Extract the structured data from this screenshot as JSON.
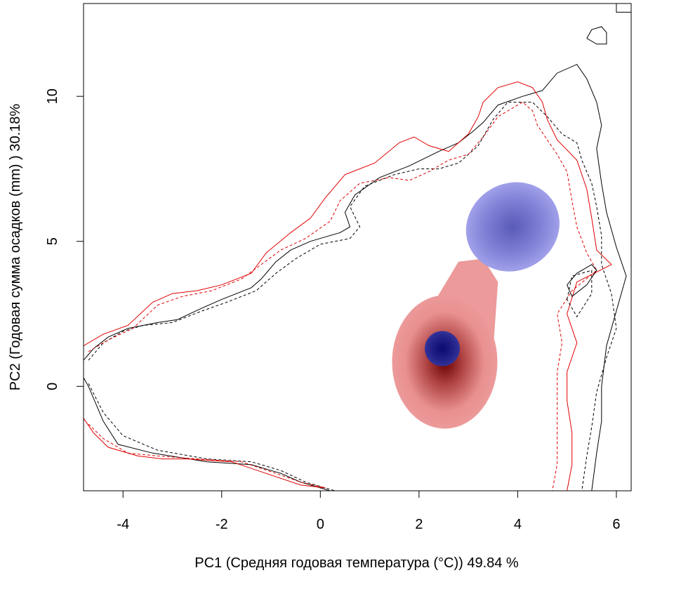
{
  "chart_data": {
    "type": "heatmap",
    "xlabel": "PC1 (Средняя годовая температура (°C)) 49.84 %",
    "ylabel": "PC2 (Годовая сумма осадков  (mm) ) 30.18%",
    "xlim": [
      -4.8,
      6.3
    ],
    "ylim": [
      -3.6,
      13.2
    ],
    "x_ticks": [
      -4,
      -2,
      0,
      2,
      4,
      6
    ],
    "y_ticks": [
      0,
      5,
      10
    ],
    "x_tick_labels": [
      "-4",
      "-2",
      "0",
      "2",
      "4",
      "6"
    ],
    "y_tick_labels": [
      "0",
      "5",
      "10"
    ],
    "grid": false,
    "colors": {
      "black_line": "#000000",
      "red_line": "#e00000",
      "red_light": "#ec9a9a",
      "red_dark": "#6a0000",
      "blue_light": "#9a9ae6",
      "blue_mid": "#6b6bc4",
      "blue_dark": "#10107a"
    },
    "density_blobs": [
      {
        "polarity": "red",
        "center": [
          2.45,
          0.6
        ],
        "peak": [
          2.4,
          0.4
        ]
      },
      {
        "polarity": "blue",
        "center": [
          3.9,
          5.5
        ],
        "peak": [
          3.8,
          5.7
        ]
      },
      {
        "polarity": "blue",
        "center": [
          2.5,
          1.35
        ],
        "peak": [
          2.5,
          1.35
        ]
      }
    ],
    "series": [
      {
        "color": "black",
        "dash": "solid",
        "points": [
          [
            -4.8,
            0.9
          ],
          [
            -4.6,
            1.3
          ],
          [
            -4.3,
            1.7
          ],
          [
            -3.9,
            2
          ],
          [
            -3.3,
            2.2
          ],
          [
            -2.9,
            2.3
          ],
          [
            -2.4,
            2.7
          ],
          [
            -2,
            3
          ],
          [
            -1.4,
            3.4
          ],
          [
            -1.2,
            3.7
          ],
          [
            -0.9,
            4.3
          ],
          [
            -0.6,
            4.7
          ],
          [
            -0.2,
            5
          ],
          [
            0.4,
            5.3
          ],
          [
            0.6,
            5.5
          ],
          [
            0.5,
            6
          ],
          [
            0.7,
            6.6
          ],
          [
            1.2,
            7.2
          ],
          [
            1.8,
            7.6
          ],
          [
            2.4,
            8.1
          ],
          [
            2.8,
            8.4
          ],
          [
            3.1,
            8.8
          ],
          [
            3.3,
            9.1
          ],
          [
            3.6,
            9.7
          ],
          [
            4.1,
            10
          ],
          [
            4.5,
            10.2
          ],
          [
            4.8,
            10.8
          ],
          [
            5.2,
            11.1
          ],
          [
            5.4,
            10.6
          ],
          [
            5.6,
            9.8
          ],
          [
            5.7,
            9
          ],
          [
            5.6,
            8.2
          ],
          [
            5.7,
            7
          ],
          [
            5.8,
            6
          ],
          [
            6,
            4.8
          ],
          [
            6.2,
            3.8
          ],
          [
            6,
            2.6
          ],
          [
            5.8,
            1.4
          ],
          [
            5.7,
            0
          ],
          [
            5.7,
            -1.2
          ],
          [
            5.6,
            -2.3
          ],
          [
            5.5,
            -3.6
          ]
        ]
      },
      {
        "color": "black",
        "dash": "solid",
        "points": [
          [
            -4.8,
            0.3
          ],
          [
            -4.7,
            0
          ],
          [
            -4.4,
            -1.2
          ],
          [
            -4.1,
            -2
          ],
          [
            -3.4,
            -2.3
          ],
          [
            -2.3,
            -2.6
          ],
          [
            -1.4,
            -2.7
          ],
          [
            -0.8,
            -3
          ],
          [
            -0.4,
            -3.3
          ],
          [
            0,
            -3.5
          ],
          [
            0.2,
            -3.6
          ]
        ]
      },
      {
        "color": "black",
        "dash": "dashed",
        "points": [
          [
            -4.7,
            0.9
          ],
          [
            -4.4,
            1.5
          ],
          [
            -4,
            1.9
          ],
          [
            -3.6,
            2.1
          ],
          [
            -3,
            2.2
          ],
          [
            -2.4,
            2.6
          ],
          [
            -1.9,
            2.9
          ],
          [
            -1.3,
            3.3
          ],
          [
            -0.9,
            3.9
          ],
          [
            -0.5,
            4.4
          ],
          [
            0,
            4.9
          ],
          [
            0.6,
            5.1
          ],
          [
            0.8,
            5.5
          ],
          [
            0.6,
            6.2
          ],
          [
            0.9,
            6.9
          ],
          [
            1.5,
            7.3
          ],
          [
            2,
            7.5
          ],
          [
            2.4,
            7.5
          ],
          [
            2.8,
            7.7
          ],
          [
            3.2,
            8.3
          ],
          [
            3.5,
            9.2
          ],
          [
            3.8,
            9.8
          ],
          [
            4.3,
            9.8
          ],
          [
            4.6,
            9.3
          ],
          [
            4.9,
            8.7
          ],
          [
            5.2,
            8.4
          ],
          [
            5.3,
            7.8
          ],
          [
            5.5,
            7
          ],
          [
            5.6,
            6.2
          ],
          [
            5.7,
            5.2
          ],
          [
            5.7,
            4.2
          ],
          [
            5.9,
            3.2
          ],
          [
            6,
            2
          ],
          [
            5.8,
            1
          ],
          [
            5.6,
            -0.2
          ],
          [
            5.5,
            -1.4
          ],
          [
            5.4,
            -2.4
          ],
          [
            5.3,
            -3.6
          ]
        ]
      },
      {
        "color": "black",
        "dash": "dashed",
        "points": [
          [
            -4.7,
            0.1
          ],
          [
            -4.4,
            -0.9
          ],
          [
            -4,
            -1.7
          ],
          [
            -3.3,
            -2.2
          ],
          [
            -2.3,
            -2.5
          ],
          [
            -1.4,
            -2.6
          ],
          [
            -0.8,
            -2.9
          ],
          [
            -0.3,
            -3.3
          ],
          [
            0.3,
            -3.6
          ]
        ]
      },
      {
        "color": "red",
        "dash": "solid",
        "points": [
          [
            -4.8,
            1.4
          ],
          [
            -4.4,
            1.8
          ],
          [
            -3.9,
            2.1
          ],
          [
            -3.4,
            2.9
          ],
          [
            -3,
            3.2
          ],
          [
            -2.5,
            3.3
          ],
          [
            -2,
            3.5
          ],
          [
            -1.4,
            3.9
          ],
          [
            -1.1,
            4.6
          ],
          [
            -0.6,
            5.3
          ],
          [
            -0.2,
            5.8
          ],
          [
            0.1,
            6.5
          ],
          [
            0.5,
            7.3
          ],
          [
            1.1,
            7.7
          ],
          [
            1.6,
            8.4
          ],
          [
            1.9,
            8.6
          ],
          [
            2.2,
            8.3
          ],
          [
            2.6,
            8.1
          ],
          [
            3,
            8.7
          ],
          [
            3.2,
            9.3
          ],
          [
            3.3,
            9.8
          ],
          [
            3.6,
            10.3
          ],
          [
            4,
            10.5
          ],
          [
            4.3,
            10.3
          ],
          [
            4.5,
            9.8
          ],
          [
            4.6,
            9.2
          ],
          [
            4.8,
            8.5
          ],
          [
            5.2,
            7.8
          ],
          [
            5.4,
            6.8
          ],
          [
            5.5,
            5.8
          ],
          [
            5.6,
            4.7
          ],
          [
            5.9,
            4.2
          ],
          [
            5.2,
            3.6
          ],
          [
            5,
            2.5
          ],
          [
            5.2,
            1.5
          ],
          [
            5,
            0.5
          ],
          [
            5,
            -0.5
          ],
          [
            5.1,
            -1.6
          ],
          [
            5.1,
            -2.7
          ],
          [
            5,
            -3.6
          ]
        ]
      },
      {
        "color": "red",
        "dash": "solid",
        "points": [
          [
            -4.8,
            -1.1
          ],
          [
            -4.6,
            -1.6
          ],
          [
            -4.3,
            -2.1
          ],
          [
            -3.7,
            -2.4
          ],
          [
            -3.2,
            -2.5
          ],
          [
            -2.7,
            -2.5
          ],
          [
            -1.8,
            -2.6
          ],
          [
            -1.1,
            -3
          ],
          [
            -0.4,
            -3.4
          ],
          [
            0.1,
            -3.5
          ]
        ]
      },
      {
        "color": "red",
        "dash": "dashed",
        "points": [
          [
            -4.7,
            1.2
          ],
          [
            -4.3,
            1.6
          ],
          [
            -3.8,
            2
          ],
          [
            -3.3,
            2.8
          ],
          [
            -2.8,
            3.1
          ],
          [
            -2.2,
            3.3
          ],
          [
            -1.6,
            3.7
          ],
          [
            -1.2,
            4.2
          ],
          [
            -0.8,
            4.7
          ],
          [
            -0.3,
            5.1
          ],
          [
            0.2,
            5.7
          ],
          [
            0.4,
            6.4
          ],
          [
            0.8,
            7
          ],
          [
            1.4,
            7.2
          ],
          [
            1.8,
            7.1
          ],
          [
            2.2,
            7.4
          ],
          [
            2.6,
            7.8
          ],
          [
            3,
            8
          ],
          [
            3.3,
            8.6
          ],
          [
            3.6,
            9.3
          ],
          [
            4.1,
            9.8
          ],
          [
            4.3,
            9.5
          ],
          [
            4.4,
            9
          ],
          [
            4.6,
            8.5
          ],
          [
            4.8,
            8
          ],
          [
            5,
            7.4
          ],
          [
            5.1,
            6.4
          ],
          [
            5.2,
            5.5
          ],
          [
            5.4,
            4.6
          ],
          [
            5.6,
            4
          ],
          [
            5.1,
            3.3
          ],
          [
            4.8,
            2.5
          ],
          [
            4.9,
            1.5
          ],
          [
            4.8,
            0.5
          ],
          [
            4.8,
            -0.6
          ],
          [
            4.8,
            -1.6
          ],
          [
            4.8,
            -2.7
          ],
          [
            4.7,
            -3.6
          ]
        ]
      },
      {
        "color": "red",
        "dash": "dashed",
        "points": [
          [
            -4.7,
            -1.3
          ],
          [
            -4.4,
            -1.8
          ],
          [
            -3.9,
            -2.3
          ],
          [
            -3.3,
            -2.4
          ],
          [
            -2.5,
            -2.5
          ],
          [
            -1.6,
            -2.6
          ],
          [
            -0.9,
            -3
          ],
          [
            -0.4,
            -3.3
          ],
          [
            0.1,
            -3.5
          ]
        ]
      },
      {
        "color": "black",
        "dash": "solid",
        "points": [
          [
            5.4,
            12
          ],
          [
            5.5,
            12.3
          ],
          [
            5.7,
            12.4
          ],
          [
            5.8,
            12.2
          ],
          [
            5.8,
            11.8
          ],
          [
            5.6,
            11.8
          ],
          [
            5.4,
            12
          ]
        ]
      },
      {
        "color": "black",
        "dash": "solid",
        "points": [
          [
            6,
            13.2
          ],
          [
            6,
            12.9
          ],
          [
            6.3,
            12.9
          ]
        ]
      },
      {
        "color": "black",
        "dash": "solid",
        "points": [
          [
            5,
            3.5
          ],
          [
            5.2,
            3.9
          ],
          [
            5.5,
            4.2
          ],
          [
            5.6,
            4
          ],
          [
            5.4,
            3.5
          ],
          [
            5.1,
            3.1
          ],
          [
            5,
            3.5
          ]
        ]
      },
      {
        "color": "black",
        "dash": "dashed",
        "points": [
          [
            5,
            3
          ],
          [
            5.1,
            3.8
          ],
          [
            5.5,
            4
          ],
          [
            5.5,
            3.2
          ],
          [
            5.2,
            2.4
          ],
          [
            5,
            3
          ]
        ]
      }
    ]
  }
}
